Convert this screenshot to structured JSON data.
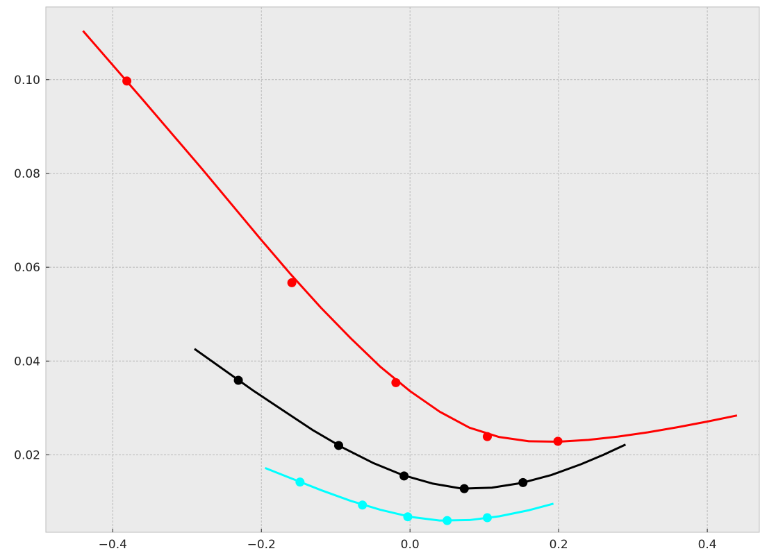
{
  "chart_data": {
    "type": "line",
    "title": "",
    "xlabel": "",
    "ylabel": "",
    "xlim": [
      -0.49,
      0.47
    ],
    "ylim": [
      0.0035,
      0.1155
    ],
    "x_ticks": [
      -0.4,
      -0.2,
      0.0,
      0.2,
      0.4
    ],
    "x_tick_labels": [
      "−0.4",
      "−0.2",
      "0.0",
      "0.2",
      "0.4"
    ],
    "y_ticks": [
      0.02,
      0.04,
      0.06,
      0.08,
      0.1
    ],
    "y_tick_labels": [
      "0.02",
      "0.04",
      "0.06",
      "0.08",
      "0.10"
    ],
    "grid": true,
    "background": "#ebebeb",
    "series": [
      {
        "color": "#ff0000",
        "points": [
          {
            "x": -0.381,
            "y": 0.0997
          },
          {
            "x": -0.159,
            "y": 0.0567
          },
          {
            "x": -0.019,
            "y": 0.0354
          },
          {
            "x": 0.104,
            "y": 0.0239
          },
          {
            "x": 0.199,
            "y": 0.0229
          }
        ],
        "curve": [
          {
            "x": -0.44,
            "y": 0.1104
          },
          {
            "x": -0.4,
            "y": 0.1031
          },
          {
            "x": -0.36,
            "y": 0.0958
          },
          {
            "x": -0.32,
            "y": 0.0884
          },
          {
            "x": -0.28,
            "y": 0.081
          },
          {
            "x": -0.24,
            "y": 0.0734
          },
          {
            "x": -0.2,
            "y": 0.0658
          },
          {
            "x": -0.16,
            "y": 0.0584
          },
          {
            "x": -0.12,
            "y": 0.0514
          },
          {
            "x": -0.08,
            "y": 0.0449
          },
          {
            "x": -0.04,
            "y": 0.0388
          },
          {
            "x": 0.0,
            "y": 0.0336
          },
          {
            "x": 0.04,
            "y": 0.0292
          },
          {
            "x": 0.08,
            "y": 0.0258
          },
          {
            "x": 0.12,
            "y": 0.0238
          },
          {
            "x": 0.16,
            "y": 0.0229
          },
          {
            "x": 0.2,
            "y": 0.0228
          },
          {
            "x": 0.24,
            "y": 0.0232
          },
          {
            "x": 0.28,
            "y": 0.0239
          },
          {
            "x": 0.32,
            "y": 0.0248
          },
          {
            "x": 0.36,
            "y": 0.0259
          },
          {
            "x": 0.4,
            "y": 0.0271
          },
          {
            "x": 0.44,
            "y": 0.0284
          }
        ]
      },
      {
        "color": "#000000",
        "points": [
          {
            "x": -0.231,
            "y": 0.0359
          },
          {
            "x": -0.096,
            "y": 0.022
          },
          {
            "x": -0.008,
            "y": 0.0155
          },
          {
            "x": 0.073,
            "y": 0.0128
          },
          {
            "x": 0.152,
            "y": 0.0141
          }
        ],
        "curve": [
          {
            "x": -0.29,
            "y": 0.0426
          },
          {
            "x": -0.25,
            "y": 0.0381
          },
          {
            "x": -0.21,
            "y": 0.0336
          },
          {
            "x": -0.17,
            "y": 0.0294
          },
          {
            "x": -0.13,
            "y": 0.0252
          },
          {
            "x": -0.09,
            "y": 0.0215
          },
          {
            "x": -0.05,
            "y": 0.0183
          },
          {
            "x": -0.01,
            "y": 0.0157
          },
          {
            "x": 0.03,
            "y": 0.0139
          },
          {
            "x": 0.07,
            "y": 0.0128
          },
          {
            "x": 0.11,
            "y": 0.013
          },
          {
            "x": 0.15,
            "y": 0.014
          },
          {
            "x": 0.19,
            "y": 0.0157
          },
          {
            "x": 0.23,
            "y": 0.018
          },
          {
            "x": 0.26,
            "y": 0.02
          },
          {
            "x": 0.29,
            "y": 0.0222
          }
        ]
      },
      {
        "color": "#00ffff",
        "points": [
          {
            "x": -0.148,
            "y": 0.0142
          },
          {
            "x": -0.064,
            "y": 0.0093
          },
          {
            "x": -0.003,
            "y": 0.0068
          },
          {
            "x": 0.05,
            "y": 0.006
          },
          {
            "x": 0.104,
            "y": 0.0066
          }
        ],
        "curve": [
          {
            "x": -0.195,
            "y": 0.0172
          },
          {
            "x": -0.16,
            "y": 0.015
          },
          {
            "x": -0.12,
            "y": 0.0125
          },
          {
            "x": -0.08,
            "y": 0.0102
          },
          {
            "x": -0.04,
            "y": 0.0083
          },
          {
            "x": 0.0,
            "y": 0.0068
          },
          {
            "x": 0.04,
            "y": 0.006
          },
          {
            "x": 0.08,
            "y": 0.0061
          },
          {
            "x": 0.12,
            "y": 0.0069
          },
          {
            "x": 0.16,
            "y": 0.0082
          },
          {
            "x": 0.193,
            "y": 0.0096
          }
        ]
      }
    ]
  }
}
